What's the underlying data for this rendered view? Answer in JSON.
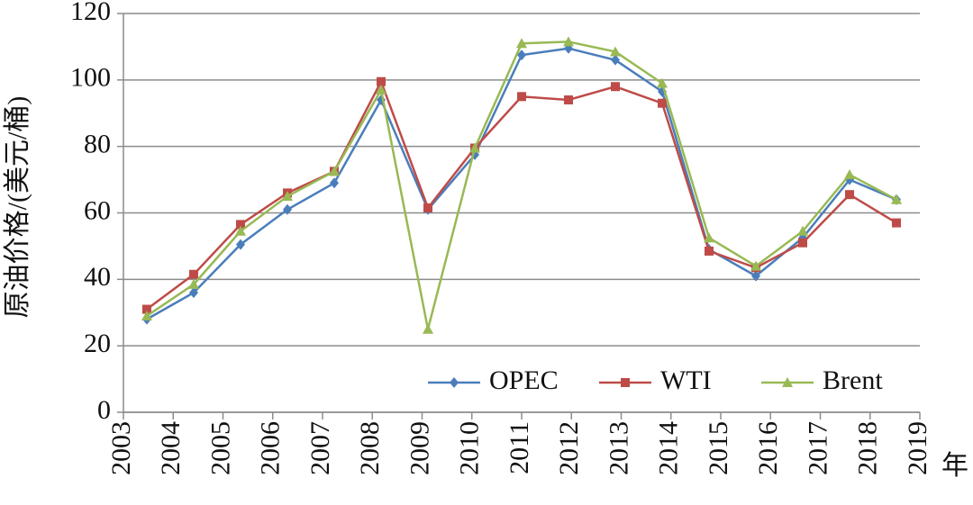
{
  "chart_data": {
    "type": "line",
    "y_label": "原油价格/(美元/桶)",
    "x_label": "年",
    "categories": [
      "2003",
      "2004",
      "2005",
      "2006",
      "2007",
      "2008",
      "2009",
      "2010",
      "2011",
      "2012",
      "2013",
      "2014",
      "2015",
      "2016",
      "2017",
      "2018",
      "2019"
    ],
    "series": [
      {
        "name": "OPEC",
        "color": "#4a7ebb",
        "marker": "diamond",
        "values": [
          28,
          36,
          50.5,
          61,
          69,
          94,
          61,
          77.5,
          107.5,
          109.5,
          106,
          96.5,
          49,
          41,
          52.5,
          70,
          64
        ]
      },
      {
        "name": "WTI",
        "color": "#be4b48",
        "marker": "square",
        "values": [
          31,
          41.5,
          56.5,
          66,
          72.5,
          99.5,
          61.5,
          79.5,
          95,
          94,
          98,
          93,
          48.5,
          43.5,
          51,
          65.5,
          57
        ]
      },
      {
        "name": "Brent",
        "color": "#98b954",
        "marker": "triangle",
        "values": [
          29,
          38.5,
          54.5,
          65,
          72.5,
          97,
          25,
          79.5,
          111,
          111.5,
          108.5,
          99,
          52.5,
          44,
          54.5,
          71.5,
          64
        ]
      }
    ],
    "ylim": [
      0,
      120
    ],
    "yticks": [
      0,
      20,
      40,
      60,
      80,
      100,
      120
    ],
    "grid": true,
    "legend": "lower right"
  }
}
